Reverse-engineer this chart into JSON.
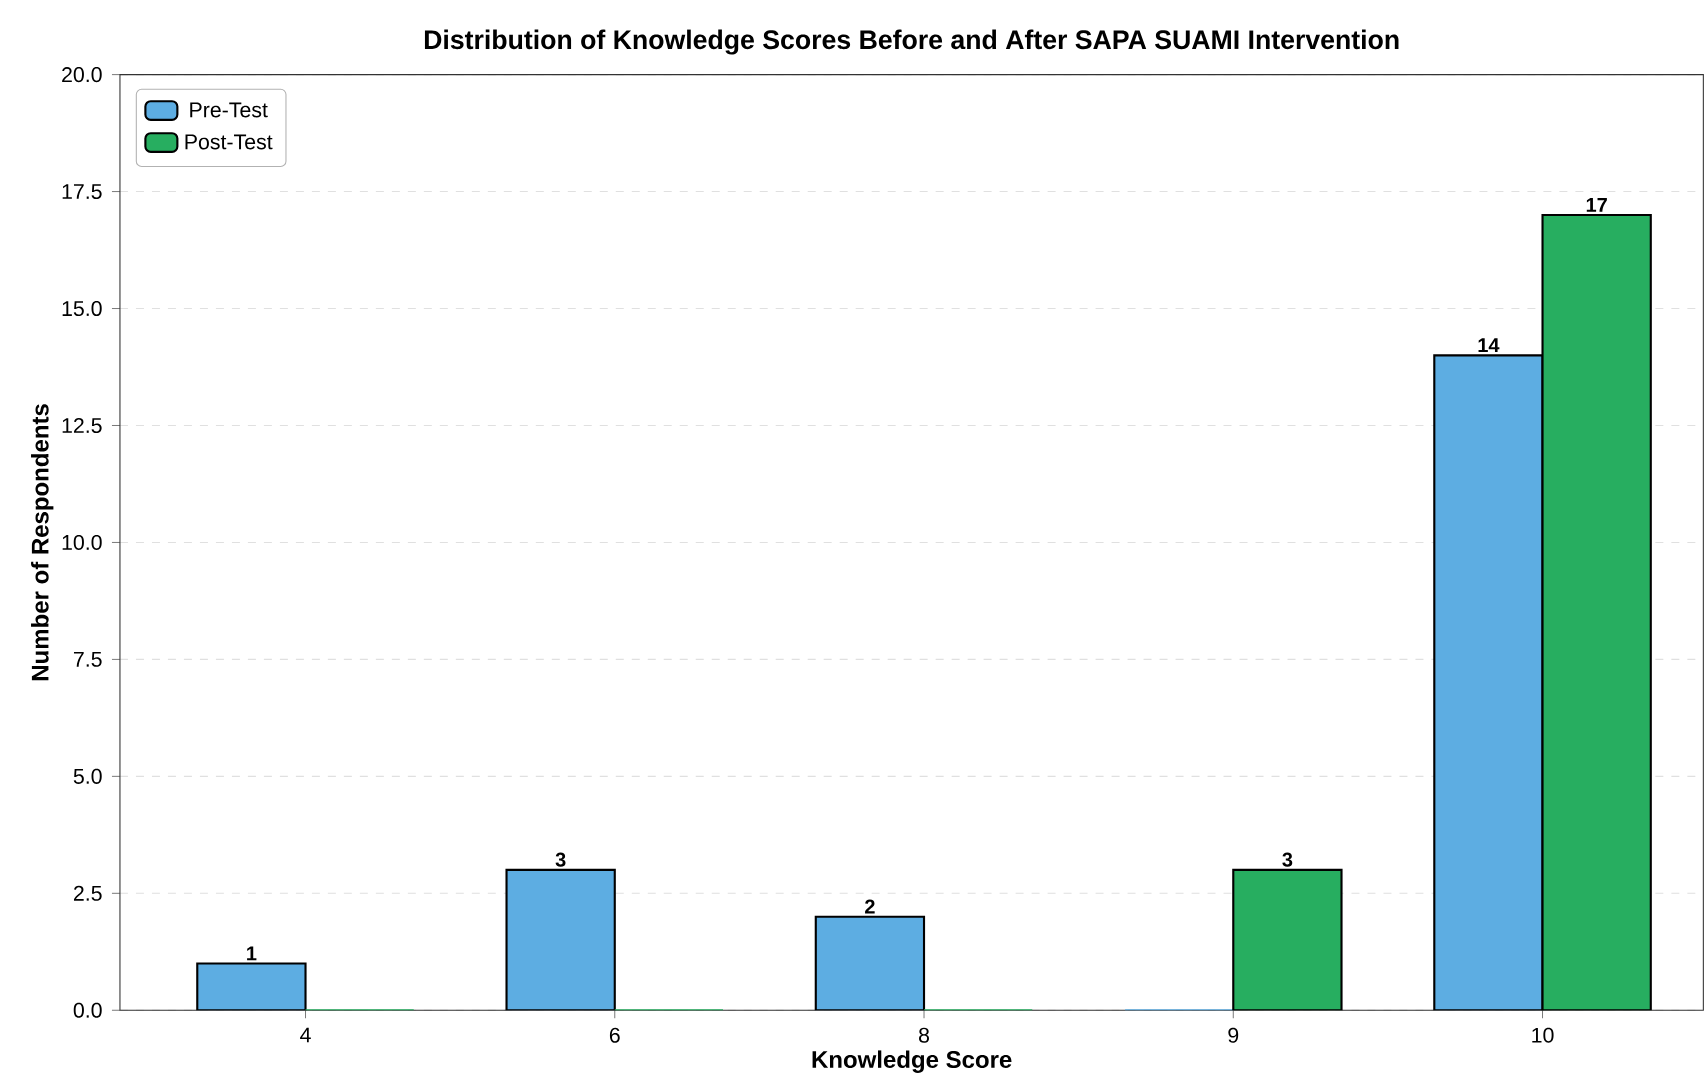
{
  "chart_data": {
    "type": "bar",
    "title": "Distribution of Knowledge Scores Before and After SAPA SUAMI Intervention",
    "xlabel": "Knowledge Score",
    "ylabel": "Number of Respondents",
    "categories": [
      "4",
      "6",
      "8",
      "9",
      "10"
    ],
    "series": [
      {
        "name": "Pre-Test",
        "color": "#5dade2",
        "values": [
          1,
          3,
          2,
          0,
          14
        ],
        "value_labels": [
          "1",
          "3",
          "2",
          null,
          "14"
        ]
      },
      {
        "name": "Post-Test",
        "color": "#27ae60",
        "values": [
          0,
          0,
          0,
          3,
          17
        ],
        "value_labels": [
          null,
          null,
          null,
          "3",
          "17"
        ]
      }
    ],
    "ylim": [
      0,
      20
    ],
    "yticks": [
      {
        "value": 0,
        "label": "0.0"
      },
      {
        "value": 2.5,
        "label": "2.5"
      },
      {
        "value": 5,
        "label": "5.0"
      },
      {
        "value": 7.5,
        "label": "7.5"
      },
      {
        "value": 10,
        "label": "10.0"
      },
      {
        "value": 12.5,
        "label": "12.5"
      },
      {
        "value": 15,
        "label": "15.0"
      },
      {
        "value": 17.5,
        "label": "17.5"
      },
      {
        "value": 20,
        "label": "20.0"
      }
    ],
    "grid": "y",
    "legend": "top left"
  }
}
